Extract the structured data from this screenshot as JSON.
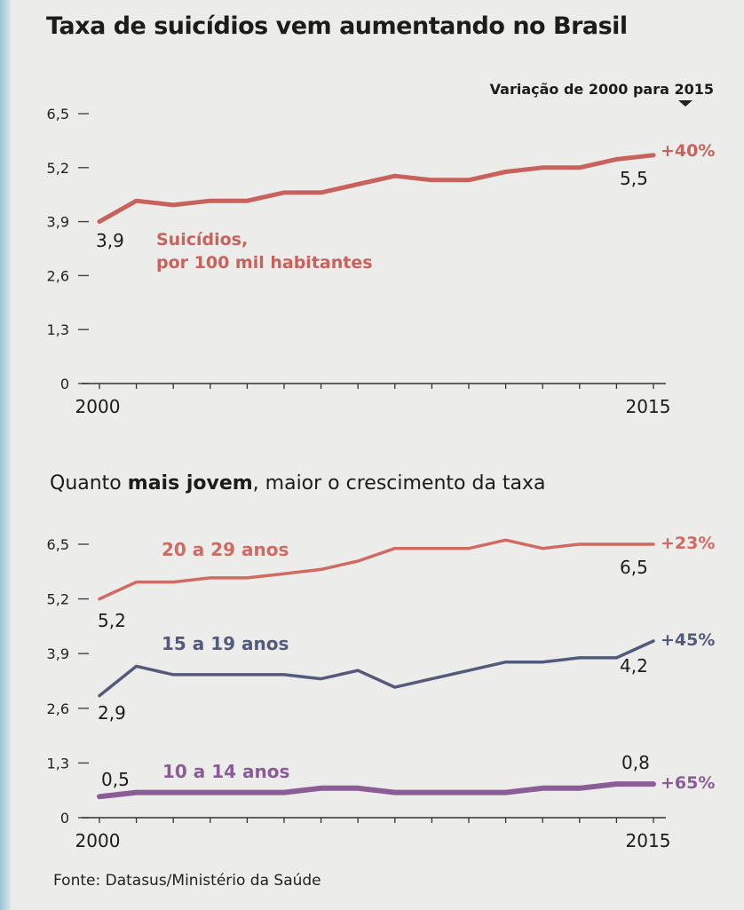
{
  "title": "Taxa de suicídios vem aumentando no Brasil",
  "variation_note": "Variação de 2000 para 2015",
  "source": "Fonte: Datasus/Ministério da Saúde",
  "colors": {
    "suicide": "#c8625c",
    "age_20_29": "#d06a62",
    "age_15_19": "#535a7c",
    "age_10_14": "#8a5d96",
    "text": "#222222"
  },
  "chart_data": [
    {
      "type": "line",
      "years": [
        2000,
        2001,
        2002,
        2003,
        2004,
        2005,
        2006,
        2007,
        2008,
        2009,
        2010,
        2011,
        2012,
        2013,
        2014,
        2015
      ],
      "x_labels": [
        "2000",
        "2015"
      ],
      "y_ticks": [
        "0",
        "1,3",
        "2,6",
        "3,9",
        "5,2",
        "6,5"
      ],
      "ylim": [
        0,
        6.5
      ],
      "series": [
        {
          "name": "Suicídios, por 100 mil habitantes",
          "color": "#c8625c",
          "values": [
            3.9,
            4.4,
            4.3,
            4.4,
            4.4,
            4.6,
            4.6,
            4.8,
            5.0,
            4.9,
            4.9,
            5.1,
            5.2,
            5.2,
            5.4,
            5.5
          ],
          "start_label": "3,9",
          "end_label": "5,5",
          "change": "+40%"
        }
      ]
    },
    {
      "type": "line",
      "subtitle_pre": "Quanto ",
      "subtitle_bold": "mais jovem",
      "subtitle_post": ", maior o crescimento da taxa",
      "years": [
        2000,
        2001,
        2002,
        2003,
        2004,
        2005,
        2006,
        2007,
        2008,
        2009,
        2010,
        2011,
        2012,
        2013,
        2014,
        2015
      ],
      "x_labels": [
        "2000",
        "2015"
      ],
      "y_ticks": [
        "0",
        "1,3",
        "2,6",
        "3,9",
        "5,2",
        "6,5"
      ],
      "ylim": [
        0,
        6.5
      ],
      "series": [
        {
          "name": "20 a 29 anos",
          "color": "#d06a62",
          "values": [
            5.2,
            5.6,
            5.6,
            5.7,
            5.7,
            5.8,
            5.9,
            6.1,
            6.4,
            6.4,
            6.4,
            6.6,
            6.4,
            6.5,
            6.5,
            6.5
          ],
          "start_label": "5,2",
          "end_label": "6,5",
          "change": "+23%"
        },
        {
          "name": "15 a 19 anos",
          "color": "#535a7c",
          "values": [
            2.9,
            3.6,
            3.4,
            3.4,
            3.4,
            3.4,
            3.3,
            3.5,
            3.1,
            3.3,
            3.5,
            3.7,
            3.7,
            3.8,
            3.8,
            4.2
          ],
          "start_label": "2,9",
          "end_label": "4,2",
          "change": "+45%"
        },
        {
          "name": "10 a 14 anos",
          "color": "#8a5d96",
          "values": [
            0.5,
            0.6,
            0.6,
            0.6,
            0.6,
            0.6,
            0.7,
            0.7,
            0.6,
            0.6,
            0.6,
            0.6,
            0.7,
            0.7,
            0.8,
            0.8
          ],
          "start_label": "0,5",
          "end_label": "0,8",
          "change": "+65%"
        }
      ]
    }
  ]
}
